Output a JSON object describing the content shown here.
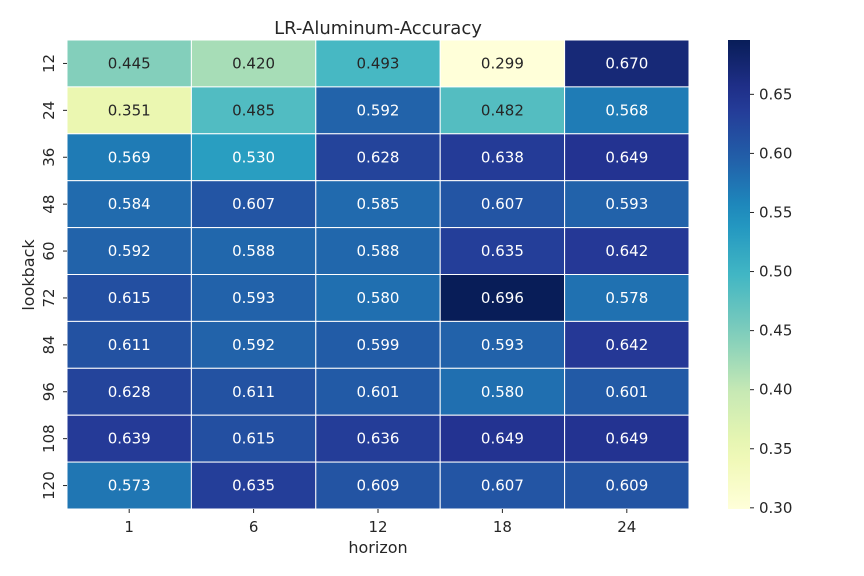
{
  "chart_data": {
    "type": "heatmap",
    "title": "LR-Aluminum-Accuracy",
    "xlabel": "horizon",
    "ylabel": "lookback",
    "x_categories": [
      "1",
      "6",
      "12",
      "18",
      "24"
    ],
    "y_categories": [
      "12",
      "24",
      "36",
      "48",
      "60",
      "72",
      "84",
      "96",
      "108",
      "120"
    ],
    "values": [
      [
        0.445,
        0.42,
        0.493,
        0.299,
        0.67
      ],
      [
        0.351,
        0.485,
        0.592,
        0.482,
        0.568
      ],
      [
        0.569,
        0.53,
        0.628,
        0.638,
        0.649
      ],
      [
        0.584,
        0.607,
        0.585,
        0.607,
        0.593
      ],
      [
        0.592,
        0.588,
        0.588,
        0.635,
        0.642
      ],
      [
        0.615,
        0.593,
        0.58,
        0.696,
        0.578
      ],
      [
        0.611,
        0.592,
        0.599,
        0.593,
        0.642
      ],
      [
        0.628,
        0.611,
        0.601,
        0.58,
        0.601
      ],
      [
        0.639,
        0.615,
        0.636,
        0.649,
        0.649
      ],
      [
        0.573,
        0.635,
        0.609,
        0.607,
        0.609
      ]
    ],
    "value_format": "0.000",
    "colormap": "YlGnBu",
    "colorbar": {
      "vmin": 0.299,
      "vmax": 0.696,
      "ticks": [
        0.3,
        0.35,
        0.4,
        0.45,
        0.5,
        0.55,
        0.6,
        0.65
      ],
      "tick_labels": [
        "0.30",
        "0.35",
        "0.40",
        "0.45",
        "0.50",
        "0.55",
        "0.60",
        "0.65"
      ]
    },
    "grid": true,
    "cell_border_color": "#ffffff"
  }
}
